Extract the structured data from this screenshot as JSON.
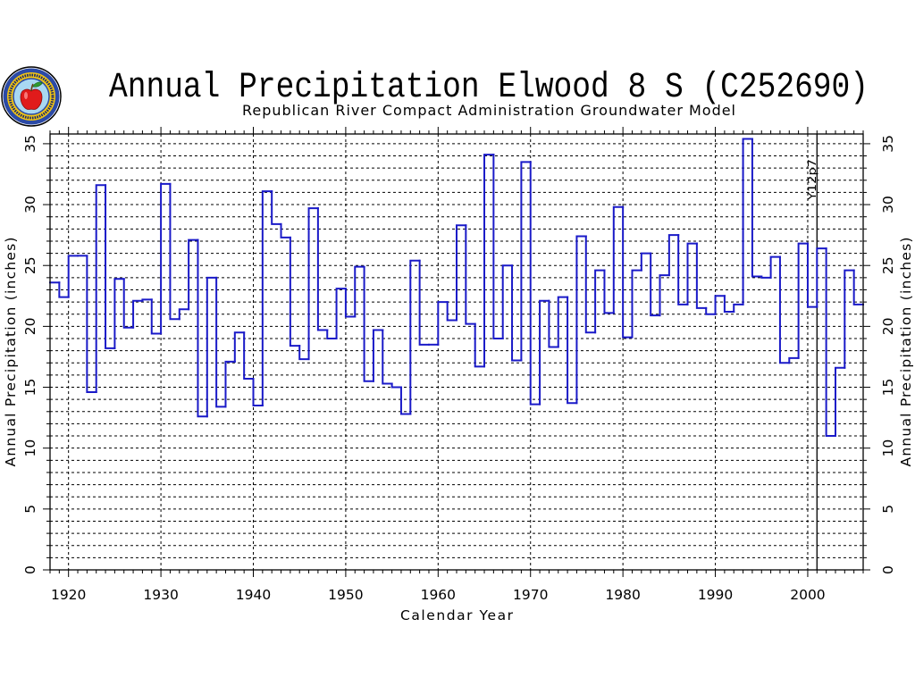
{
  "logo": {
    "icon": "apple-seal-logo"
  },
  "chart_data": {
    "type": "line",
    "line_style": "step",
    "title": "Annual Precipitation Elwood 8 S (C252690)",
    "subtitle": "Republican River Compact Administration Groundwater Model",
    "xlabel": "Calendar Year",
    "ylabel": "Annual Precipitation (inches)",
    "xlim": [
      1918,
      2006
    ],
    "ylim": [
      0,
      35.8
    ],
    "xticks": [
      1920,
      1930,
      1940,
      1950,
      1960,
      1970,
      1980,
      1990,
      2000
    ],
    "yticks": [
      0,
      5,
      10,
      15,
      20,
      25,
      30,
      35
    ],
    "grid": true,
    "series": [
      {
        "color": "#1a1ac8",
        "x": [
          1918,
          1919,
          1920,
          1921,
          1922,
          1923,
          1924,
          1925,
          1926,
          1927,
          1928,
          1929,
          1930,
          1931,
          1932,
          1933,
          1934,
          1935,
          1936,
          1937,
          1938,
          1939,
          1940,
          1941,
          1942,
          1943,
          1944,
          1945,
          1946,
          1947,
          1948,
          1949,
          1950,
          1951,
          1952,
          1953,
          1954,
          1955,
          1956,
          1957,
          1958,
          1959,
          1960,
          1961,
          1962,
          1963,
          1964,
          1965,
          1966,
          1967,
          1968,
          1969,
          1970,
          1971,
          1972,
          1973,
          1974,
          1975,
          1976,
          1977,
          1978,
          1979,
          1980,
          1981,
          1982,
          1983,
          1984,
          1985,
          1986,
          1987,
          1988,
          1989,
          1990,
          1991,
          1992,
          1993,
          1994,
          1995,
          1996,
          1997,
          1998,
          1999,
          2000,
          2001,
          2002,
          2003,
          2004,
          2005
        ],
        "values": [
          23.6,
          22.4,
          25.8,
          25.8,
          14.6,
          31.6,
          18.2,
          23.9,
          19.9,
          22.1,
          22.2,
          19.4,
          31.7,
          20.6,
          21.4,
          27.1,
          12.6,
          24.0,
          13.4,
          17.1,
          19.5,
          15.7,
          13.5,
          31.1,
          28.4,
          27.3,
          18.4,
          17.3,
          29.7,
          19.7,
          19.0,
          23.1,
          20.8,
          24.9,
          15.5,
          19.7,
          15.3,
          15.0,
          12.8,
          25.4,
          18.5,
          18.5,
          22.0,
          20.5,
          28.3,
          20.2,
          16.7,
          34.1,
          19.0,
          25.0,
          17.2,
          33.5,
          13.6,
          22.1,
          18.3,
          22.4,
          13.7,
          27.4,
          19.5,
          24.6,
          21.1,
          29.8,
          19.1,
          24.6,
          26.0,
          20.9,
          24.2,
          27.5,
          21.8,
          26.8,
          21.5,
          21.0,
          22.5,
          21.2,
          21.8,
          35.4,
          24.1,
          24.0,
          25.7,
          17.0,
          17.4,
          26.8,
          21.6,
          26.4,
          11.0,
          16.6,
          24.6,
          21.8
        ]
      }
    ],
    "annotations": [
      {
        "x": 2001,
        "text": "Y12p7"
      }
    ]
  }
}
